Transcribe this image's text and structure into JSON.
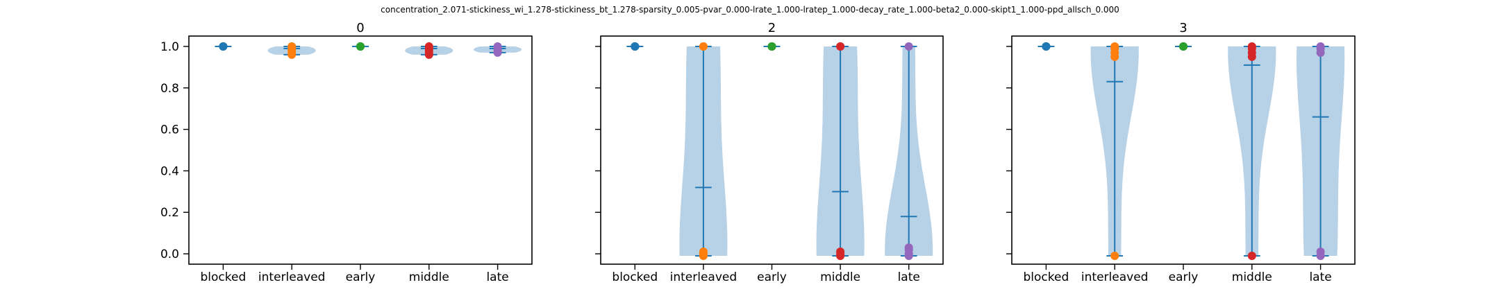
{
  "figure": {
    "suptitle": "concentration_2.071-stickiness_wi_1.278-stickiness_bt_1.278-sparsity_0.005-pvar_0.000-lrate_1.000-lratep_1.000-decay_rate_1.000-beta2_0.000-skipt1_1.000-ppd_allsch_0.000"
  },
  "colors": {
    "violin_fill": "#b7d1e7",
    "stat_line": "#1f77b4",
    "point_colors": [
      "#1f77b4",
      "#ff7f0e",
      "#2ca02c",
      "#d62728",
      "#9467bd"
    ]
  },
  "chart_data": [
    {
      "type": "violin",
      "title": "0",
      "categories": [
        "blocked",
        "interleaved",
        "early",
        "middle",
        "late"
      ],
      "ylim": [
        -0.05,
        1.05
      ],
      "yticks": [
        0.0,
        0.2,
        0.4,
        0.6,
        0.8,
        1.0
      ],
      "ytick_labels": [
        "0.0",
        "0.2",
        "0.4",
        "0.6",
        "0.8",
        "1.0"
      ],
      "show_ytick_labels": true,
      "grid": false,
      "series": [
        {
          "category": "blocked",
          "min": 1.0,
          "max": 1.0,
          "mean": 1.0,
          "points": [
            1.0,
            1.0,
            1.0
          ]
        },
        {
          "category": "interleaved",
          "min": 0.96,
          "max": 1.0,
          "mean": 0.99,
          "points": [
            1.0,
            0.99,
            0.98,
            0.97,
            0.96
          ]
        },
        {
          "category": "early",
          "min": 1.0,
          "max": 1.0,
          "mean": 1.0,
          "points": [
            1.0,
            1.0,
            1.0
          ]
        },
        {
          "category": "middle",
          "min": 0.96,
          "max": 1.0,
          "mean": 0.99,
          "points": [
            1.0,
            0.99,
            0.98,
            0.97,
            0.96
          ]
        },
        {
          "category": "late",
          "min": 0.97,
          "max": 1.0,
          "mean": 0.99,
          "points": [
            1.0,
            0.99,
            0.98,
            0.97
          ]
        }
      ]
    },
    {
      "type": "violin",
      "title": "2",
      "categories": [
        "blocked",
        "interleaved",
        "early",
        "middle",
        "late"
      ],
      "ylim": [
        -0.05,
        1.05
      ],
      "yticks": [
        0.0,
        0.2,
        0.4,
        0.6,
        0.8,
        1.0
      ],
      "ytick_labels": [
        "0.0",
        "0.2",
        "0.4",
        "0.6",
        "0.8",
        "1.0"
      ],
      "show_ytick_labels": false,
      "grid": false,
      "series": [
        {
          "category": "blocked",
          "min": 1.0,
          "max": 1.0,
          "mean": 1.0,
          "points": [
            1.0,
            1.0,
            1.0
          ]
        },
        {
          "category": "interleaved",
          "min": -0.01,
          "max": 1.0,
          "mean": 0.32,
          "points": [
            1.0,
            1.0,
            0.01,
            0.0,
            -0.01
          ]
        },
        {
          "category": "early",
          "min": 1.0,
          "max": 1.0,
          "mean": 1.0,
          "points": [
            1.0,
            1.0,
            1.0
          ]
        },
        {
          "category": "middle",
          "min": -0.01,
          "max": 1.0,
          "mean": 0.3,
          "points": [
            1.0,
            1.0,
            0.01,
            0.0,
            -0.01
          ]
        },
        {
          "category": "late",
          "min": -0.01,
          "max": 1.0,
          "mean": 0.18,
          "points": [
            1.0,
            0.03,
            0.02,
            0.0,
            -0.01
          ]
        }
      ]
    },
    {
      "type": "violin",
      "title": "3",
      "categories": [
        "blocked",
        "interleaved",
        "early",
        "middle",
        "late"
      ],
      "ylim": [
        -0.05,
        1.05
      ],
      "yticks": [
        0.0,
        0.2,
        0.4,
        0.6,
        0.8,
        1.0
      ],
      "ytick_labels": [
        "0.0",
        "0.2",
        "0.4",
        "0.6",
        "0.8",
        "1.0"
      ],
      "show_ytick_labels": false,
      "grid": false,
      "series": [
        {
          "category": "blocked",
          "min": 1.0,
          "max": 1.0,
          "mean": 1.0,
          "points": [
            1.0,
            1.0,
            1.0
          ]
        },
        {
          "category": "interleaved",
          "min": -0.01,
          "max": 1.0,
          "mean": 0.83,
          "points": [
            1.0,
            0.99,
            0.97,
            0.95,
            -0.01
          ]
        },
        {
          "category": "early",
          "min": 1.0,
          "max": 1.0,
          "mean": 1.0,
          "points": [
            1.0,
            1.0,
            1.0
          ]
        },
        {
          "category": "middle",
          "min": -0.01,
          "max": 1.0,
          "mean": 0.91,
          "points": [
            1.0,
            0.99,
            0.97,
            0.95,
            -0.01
          ]
        },
        {
          "category": "late",
          "min": -0.01,
          "max": 1.0,
          "mean": 0.66,
          "points": [
            1.0,
            0.99,
            0.97,
            0.01,
            -0.01
          ]
        }
      ]
    }
  ]
}
